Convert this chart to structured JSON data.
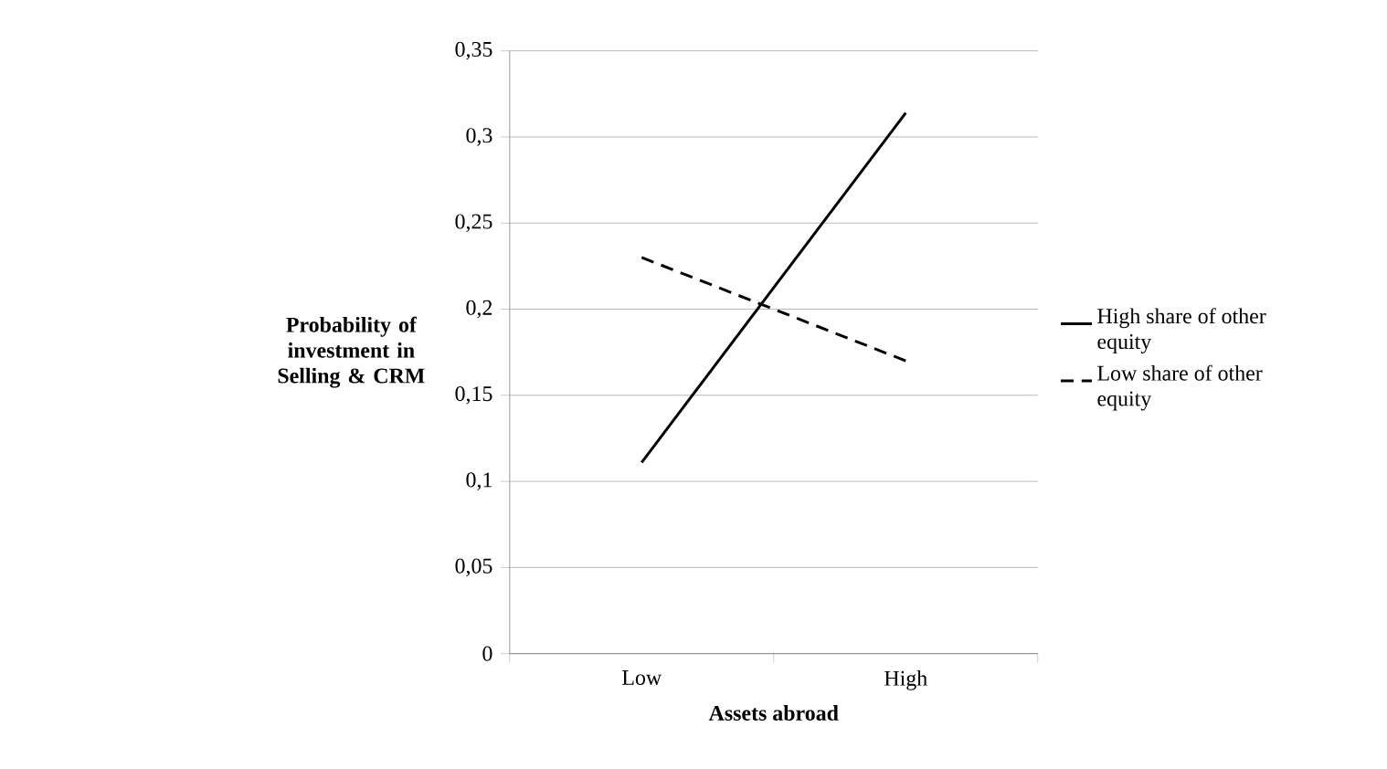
{
  "chart_data": {
    "type": "line",
    "xlabel": "Assets abroad",
    "ylabel": "Probability of investment in Selling & CRM",
    "categories": [
      "Low",
      "High"
    ],
    "series": [
      {
        "name": "High share of other equity",
        "color": "#000000",
        "line_style": "solid",
        "values": [
          0.111,
          0.314
        ]
      },
      {
        "name": "Low share of other equity",
        "color": "#000000",
        "line_style": "dashed",
        "values": [
          0.23,
          0.17
        ]
      }
    ],
    "ylim": [
      0,
      0.35
    ],
    "yticks": [
      0,
      {
        "value": 0.05,
        "label": "0,05"
      },
      {
        "value": 0.1,
        "label": "0,1"
      },
      {
        "value": 0.15,
        "label": "0,15"
      },
      {
        "value": 0.2,
        "label": "0,2"
      },
      {
        "value": 0.25,
        "label": "0,25"
      },
      {
        "value": 0.3,
        "label": "0,3"
      },
      {
        "value": 0.35,
        "label": "0,35"
      }
    ],
    "grid": "y",
    "legend": "right",
    "marker": "none"
  }
}
